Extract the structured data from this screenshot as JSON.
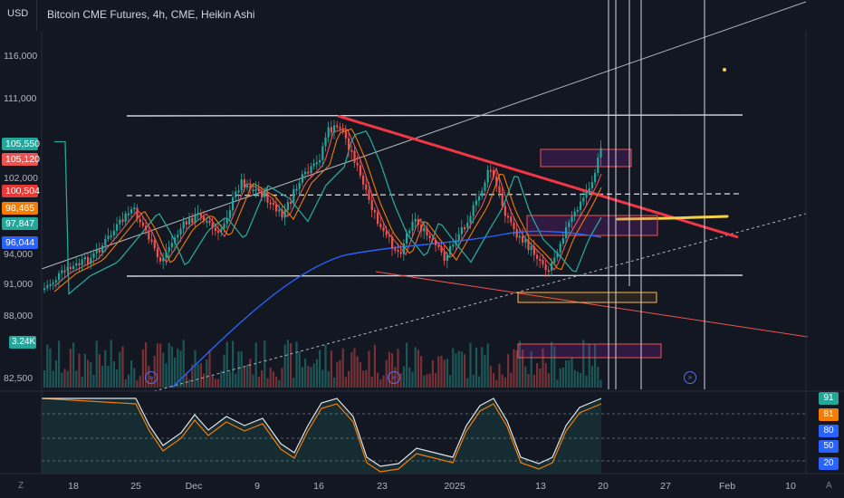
{
  "header": {
    "currency": "USD",
    "title": "Bitcoin CME Futures, 4h, CME, Heikin Ashi"
  },
  "price_axis": {
    "labels": [
      "116,000",
      "111,000",
      "102,000",
      "94,000",
      "91,000",
      "88,000",
      "82,500"
    ],
    "badges": [
      {
        "text": "105,550",
        "color": "#26a69a"
      },
      {
        "text": "105,120",
        "color": "#ef5350"
      },
      {
        "text": "100,504",
        "color": "#e53935"
      },
      {
        "text": "98,465",
        "color": "#f57c00"
      },
      {
        "text": "97,847",
        "color": "#26a69a"
      },
      {
        "text": "96,044",
        "color": "#2962ff"
      }
    ],
    "volume_badge": "3.24K"
  },
  "time_axis": {
    "labels": [
      "18",
      "25",
      "Dec",
      "9",
      "16",
      "23",
      "2025",
      "13",
      "20",
      "27",
      "Feb",
      "10"
    ]
  },
  "oscillator": {
    "badges": [
      {
        "text": "91",
        "color": "#26a69a"
      },
      {
        "text": "81",
        "color": "#f57c00"
      },
      {
        "text": "80",
        "color": "#2962ff"
      },
      {
        "text": "50",
        "color": "#2962ff"
      },
      {
        "text": "20",
        "color": "#2962ff"
      }
    ]
  },
  "corners": {
    "left": "Z",
    "right": "A"
  },
  "colors": {
    "up": "#26a69a",
    "down": "#ef5350",
    "bg": "#131722",
    "trend": "#f23645",
    "ema": "#26a69a",
    "sma": "#2962ff"
  },
  "icons": {
    "fast_forward": "fast-forward-circle-icon"
  }
}
